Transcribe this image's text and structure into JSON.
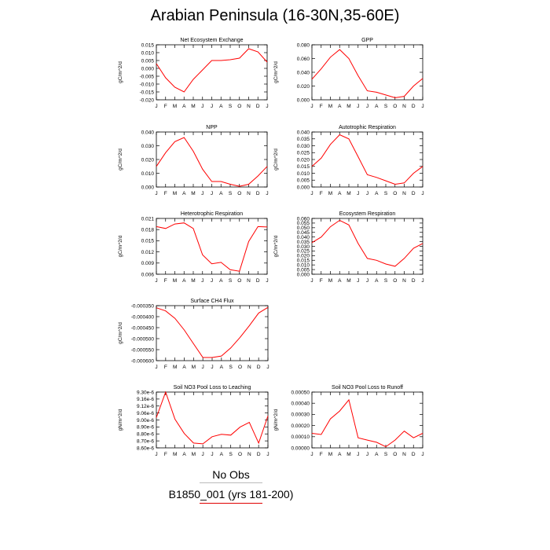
{
  "title": "Arabian Peninsula (16-30N,35-60E)",
  "legend": {
    "obs_label": "No Obs",
    "case_label": "B1850_001 (yrs 181-200)",
    "case_color": "#ff0000"
  },
  "chart_data": [
    {
      "type": "line",
      "title": "Net Ecosystem Exchange",
      "ylabel": "gC/m^2/d",
      "x": [
        "J",
        "F",
        "M",
        "A",
        "M",
        "J",
        "J",
        "A",
        "S",
        "O",
        "N",
        "D",
        "J"
      ],
      "yticks": [
        "0.015",
        "0.010",
        "0.005",
        "0.000",
        "-0.005",
        "-0.010",
        "-0.015",
        "-0.020"
      ],
      "ylim": [
        -0.02,
        0.015
      ],
      "series": [
        {
          "values": [
            0.003,
            -0.006,
            -0.012,
            -0.015,
            -0.007,
            -0.001,
            0.005,
            0.005,
            0.0055,
            0.0065,
            0.0125,
            0.0105,
            0.004
          ]
        }
      ]
    },
    {
      "type": "line",
      "title": "GPP",
      "ylabel": "gC/m^2/d",
      "x": [
        "J",
        "F",
        "M",
        "A",
        "M",
        "J",
        "J",
        "A",
        "S",
        "O",
        "N",
        "D",
        "J"
      ],
      "yticks": [
        "0.080",
        "0.060",
        "0.040",
        "0.020",
        "0.000"
      ],
      "ylim": [
        0.0,
        0.08
      ],
      "series": [
        {
          "values": [
            0.03,
            0.045,
            0.062,
            0.073,
            0.06,
            0.035,
            0.013,
            0.011,
            0.007,
            0.003,
            0.005,
            0.02,
            0.031
          ]
        }
      ]
    },
    {
      "type": "line",
      "title": "NPP",
      "ylabel": "gC/m^2/d",
      "x": [
        "J",
        "F",
        "M",
        "A",
        "M",
        "J",
        "J",
        "A",
        "S",
        "O",
        "N",
        "D",
        "J"
      ],
      "yticks": [
        "0.040",
        "0.030",
        "0.020",
        "0.010",
        "0.000"
      ],
      "ylim": [
        0.0,
        0.04
      ],
      "series": [
        {
          "values": [
            0.015,
            0.025,
            0.033,
            0.036,
            0.026,
            0.013,
            0.004,
            0.004,
            0.002,
            0.0005,
            0.002,
            0.008,
            0.015
          ]
        }
      ]
    },
    {
      "type": "line",
      "title": "Autotrophic Respiration",
      "ylabel": "gC/m^2/d",
      "x": [
        "J",
        "F",
        "M",
        "A",
        "M",
        "J",
        "J",
        "A",
        "S",
        "O",
        "N",
        "D",
        "J"
      ],
      "yticks": [
        "0.040",
        "0.035",
        "0.030",
        "0.025",
        "0.020",
        "0.015",
        "0.010",
        "0.005",
        "0.000"
      ],
      "ylim": [
        0.0,
        0.04
      ],
      "series": [
        {
          "values": [
            0.015,
            0.021,
            0.031,
            0.038,
            0.035,
            0.022,
            0.009,
            0.007,
            0.0045,
            0.002,
            0.003,
            0.01,
            0.015
          ]
        }
      ]
    },
    {
      "type": "line",
      "title": "Heterotrophic Respiration",
      "ylabel": "gC/m^2/d",
      "x": [
        "J",
        "F",
        "M",
        "A",
        "M",
        "J",
        "J",
        "A",
        "S",
        "O",
        "N",
        "D",
        "J"
      ],
      "yticks": [
        "0.021",
        "0.018",
        "0.015",
        "0.012",
        "0.009",
        "0.006"
      ],
      "ylim": [
        0.006,
        0.021
      ],
      "series": [
        {
          "values": [
            0.0188,
            0.0183,
            0.0195,
            0.0198,
            0.0183,
            0.0112,
            0.0088,
            0.0092,
            0.0072,
            0.0068,
            0.0148,
            0.0188,
            0.0187
          ]
        }
      ]
    },
    {
      "type": "line",
      "title": "Ecosystem Respiration",
      "ylabel": "gC/m^2/d",
      "x": [
        "J",
        "F",
        "M",
        "A",
        "M",
        "J",
        "J",
        "A",
        "S",
        "O",
        "N",
        "D",
        "J"
      ],
      "yticks": [
        "0.060",
        "0.055",
        "0.050",
        "0.045",
        "0.040",
        "0.035",
        "0.030",
        "0.025",
        "0.020",
        "0.015",
        "0.010",
        "0.005",
        "0.000"
      ],
      "ylim": [
        0.0,
        0.06
      ],
      "series": [
        {
          "values": [
            0.034,
            0.04,
            0.051,
            0.058,
            0.053,
            0.033,
            0.017,
            0.015,
            0.011,
            0.0085,
            0.017,
            0.028,
            0.033
          ]
        }
      ]
    },
    {
      "type": "line",
      "title": "Surface CH4 Flux",
      "ylabel": "gC/m^2/d",
      "x": [
        "J",
        "F",
        "M",
        "A",
        "M",
        "J",
        "J",
        "A",
        "S",
        "O",
        "N",
        "D",
        "J"
      ],
      "yticks": [
        "-0.000350",
        "-0.000400",
        "-0.000450",
        "-0.000500",
        "-0.000550",
        "-0.000600"
      ],
      "ylim": [
        -0.0006,
        -0.00034
      ],
      "series": [
        {
          "values": [
            -0.00035,
            -0.000365,
            -0.0004,
            -0.000455,
            -0.00052,
            -0.000585,
            -0.000585,
            -0.000578,
            -0.00054,
            -0.00049,
            -0.000435,
            -0.000375,
            -0.000348
          ]
        }
      ]
    },
    {
      "type": "line",
      "title": "Soil NO3 Pool Loss to Leaching",
      "ylabel": "gN/m^2/d",
      "x": [
        "J",
        "F",
        "M",
        "A",
        "M",
        "J",
        "J",
        "A",
        "S",
        "O",
        "N",
        "D",
        "J"
      ],
      "yticks": [
        "9.30e-6",
        "9.16e-6",
        "9.12e-6",
        "9.06e-6",
        "9.00e-6",
        "8.90e-6",
        "8.80e-6",
        "8.70e-6",
        "8.60e-6"
      ],
      "ylim": [
        8.6e-06,
        9.3e-06
      ],
      "series": [
        {
          "values": [
            8.98e-06,
            9.3e-06,
            8.96e-06,
            8.78e-06,
            8.66e-06,
            8.65e-06,
            8.74e-06,
            8.77e-06,
            8.76e-06,
            8.86e-06,
            8.92e-06,
            8.66e-06,
            9e-06
          ]
        }
      ]
    },
    {
      "type": "line",
      "title": "Soil NO3 Pool Loss to Runoff",
      "ylabel": "gN/m^2/d",
      "x": [
        "J",
        "F",
        "M",
        "A",
        "M",
        "J",
        "J",
        "A",
        "S",
        "O",
        "N",
        "D",
        "J"
      ],
      "yticks": [
        "0.00050",
        "0.00040",
        "0.00030",
        "0.00020",
        "0.00010",
        "0.00000"
      ],
      "ylim": [
        0.0,
        0.0005
      ],
      "series": [
        {
          "values": [
            0.00013,
            0.00012,
            0.00026,
            0.00033,
            0.00043,
            9e-05,
            7e-05,
            5e-05,
            1e-05,
            7e-05,
            0.00015,
            9e-05,
            0.00013
          ]
        }
      ]
    }
  ]
}
